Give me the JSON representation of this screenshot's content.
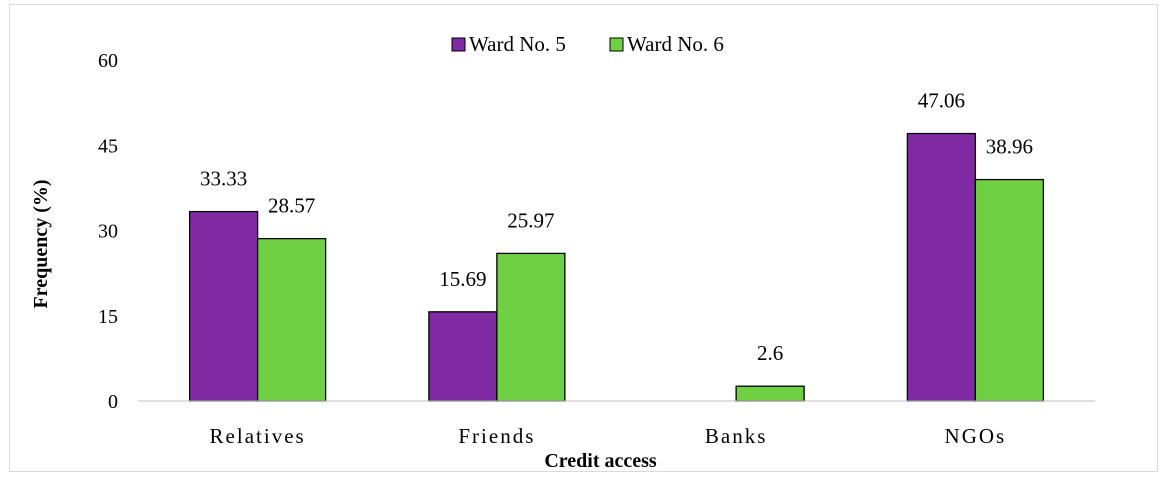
{
  "chart_data": {
    "type": "bar",
    "categories": [
      "Relatives",
      "Friends",
      "Banks",
      "NGOs"
    ],
    "series": [
      {
        "name": "Ward No. 5",
        "color": "#7f2aa3",
        "values": [
          33.33,
          15.69,
          null,
          47.06
        ]
      },
      {
        "name": "Ward No. 6",
        "color": "#6fd043",
        "values": [
          28.57,
          25.97,
          2.6,
          38.96
        ]
      }
    ],
    "xlabel": "Credit access",
    "ylabel": "Frequency (%)",
    "ylim": [
      0,
      60
    ],
    "yticks": [
      "0",
      "15",
      "30",
      "45",
      "60"
    ],
    "data_labels": [
      [
        "33.33",
        "15.69",
        "",
        "47.06"
      ],
      [
        "28.57",
        "25.97",
        "2.6",
        "38.96"
      ]
    ],
    "legend_position": "top-center",
    "grid": false
  }
}
